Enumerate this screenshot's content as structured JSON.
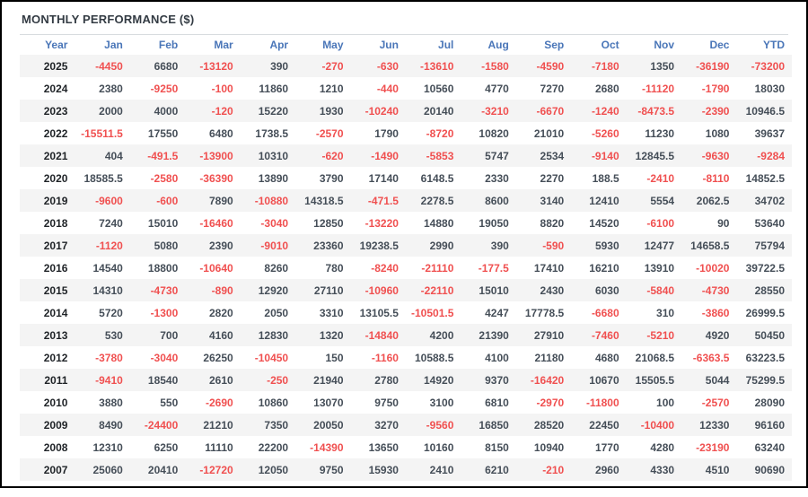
{
  "panel": {
    "title": "MONTHLY PERFORMANCE ($)"
  },
  "table": {
    "columns": [
      "Year",
      "Jan",
      "Feb",
      "Mar",
      "Apr",
      "May",
      "Jun",
      "Jul",
      "Aug",
      "Sep",
      "Oct",
      "Nov",
      "Dec",
      "YTD"
    ],
    "rows": [
      {
        "year": "2025",
        "values": [
          -4450,
          6680,
          -13120,
          390,
          -270,
          -630,
          -13610,
          -1580,
          -4590,
          -7180,
          1350,
          -36190,
          -73200
        ]
      },
      {
        "year": "2024",
        "values": [
          2380,
          -9250,
          -100,
          11860,
          1210,
          -440,
          10560,
          4770,
          7270,
          2680,
          -11120,
          -1790,
          18030
        ]
      },
      {
        "year": "2023",
        "values": [
          2000,
          4000,
          -120,
          15220,
          1930,
          -10240,
          20140,
          -3210,
          -6670,
          -1240,
          -8473.5,
          -2390,
          10946.5
        ]
      },
      {
        "year": "2022",
        "values": [
          -15511.5,
          17550,
          6480,
          1738.5,
          -2570,
          1790,
          -8720,
          10820,
          21010,
          -5260,
          11230,
          1080,
          39637
        ]
      },
      {
        "year": "2021",
        "values": [
          404,
          -491.5,
          -13900,
          10310,
          -620,
          -1490,
          -5853,
          5747,
          2534,
          -9140,
          12845.5,
          -9630,
          -9284
        ]
      },
      {
        "year": "2020",
        "values": [
          18585.5,
          -2580,
          -36390,
          13890,
          3790,
          17140,
          6148.5,
          2330,
          2270,
          188.5,
          -2410,
          -8110,
          14852.5
        ]
      },
      {
        "year": "2019",
        "values": [
          -9600,
          -600,
          7890,
          -10880,
          14318.5,
          -471.5,
          2278.5,
          8600,
          3140,
          12410,
          5554,
          2062.5,
          34702
        ]
      },
      {
        "year": "2018",
        "values": [
          7240,
          15010,
          -16460,
          -3040,
          12850,
          -13220,
          14880,
          19050,
          8820,
          14520,
          -6100,
          90,
          53640
        ]
      },
      {
        "year": "2017",
        "values": [
          -1120,
          5080,
          2390,
          -9010,
          23360,
          19238.5,
          2990,
          390,
          -590,
          5930,
          12477,
          14658.5,
          75794
        ]
      },
      {
        "year": "2016",
        "values": [
          14540,
          18800,
          -10640,
          8260,
          780,
          -8240,
          -21110,
          -177.5,
          17410,
          16210,
          13910,
          -10020,
          39722.5
        ]
      },
      {
        "year": "2015",
        "values": [
          14310,
          -4730,
          -890,
          12920,
          27110,
          -10960,
          -22110,
          15010,
          2430,
          6030,
          -5840,
          -4730,
          28550
        ]
      },
      {
        "year": "2014",
        "values": [
          5720,
          -1300,
          2820,
          2050,
          3310,
          13105.5,
          -10501.5,
          4247,
          17778.5,
          -6680,
          310,
          -3860,
          26999.5
        ]
      },
      {
        "year": "2013",
        "values": [
          530,
          700,
          4160,
          12830,
          1320,
          -14840,
          4200,
          21390,
          27910,
          -7460,
          -5210,
          4920,
          50450
        ]
      },
      {
        "year": "2012",
        "values": [
          -3780,
          -3040,
          26250,
          -10450,
          150,
          -1160,
          10588.5,
          4100,
          21180,
          4680,
          21068.5,
          -6363.5,
          63223.5
        ]
      },
      {
        "year": "2011",
        "values": [
          -9410,
          18540,
          2610,
          -250,
          21940,
          2780,
          14920,
          9370,
          -16420,
          10670,
          15505.5,
          5044,
          75299.5
        ]
      },
      {
        "year": "2010",
        "values": [
          3880,
          550,
          -2690,
          10860,
          13070,
          9750,
          3100,
          6810,
          -2970,
          -11800,
          100,
          -2570,
          28090
        ]
      },
      {
        "year": "2009",
        "values": [
          8490,
          -24400,
          21210,
          7350,
          20050,
          3270,
          -9560,
          16850,
          28520,
          22450,
          -10400,
          12330,
          96160
        ]
      },
      {
        "year": "2008",
        "values": [
          12310,
          6250,
          11110,
          22200,
          -14390,
          13650,
          10160,
          8150,
          10940,
          1770,
          4280,
          -23190,
          63240
        ]
      },
      {
        "year": "2007",
        "values": [
          25060,
          20410,
          -12720,
          12050,
          9750,
          15930,
          2410,
          6210,
          -210,
          2960,
          4330,
          4510,
          90690
        ]
      }
    ]
  },
  "colors": {
    "border": "#000000",
    "title": "#333b43",
    "rule": "#d8dcdf",
    "header_text": "#4a76b8",
    "negative": "#f05050",
    "positive": "#454e58",
    "year": "#1f2327",
    "stripe": "#f4f4f4",
    "bg": "#ffffff"
  }
}
